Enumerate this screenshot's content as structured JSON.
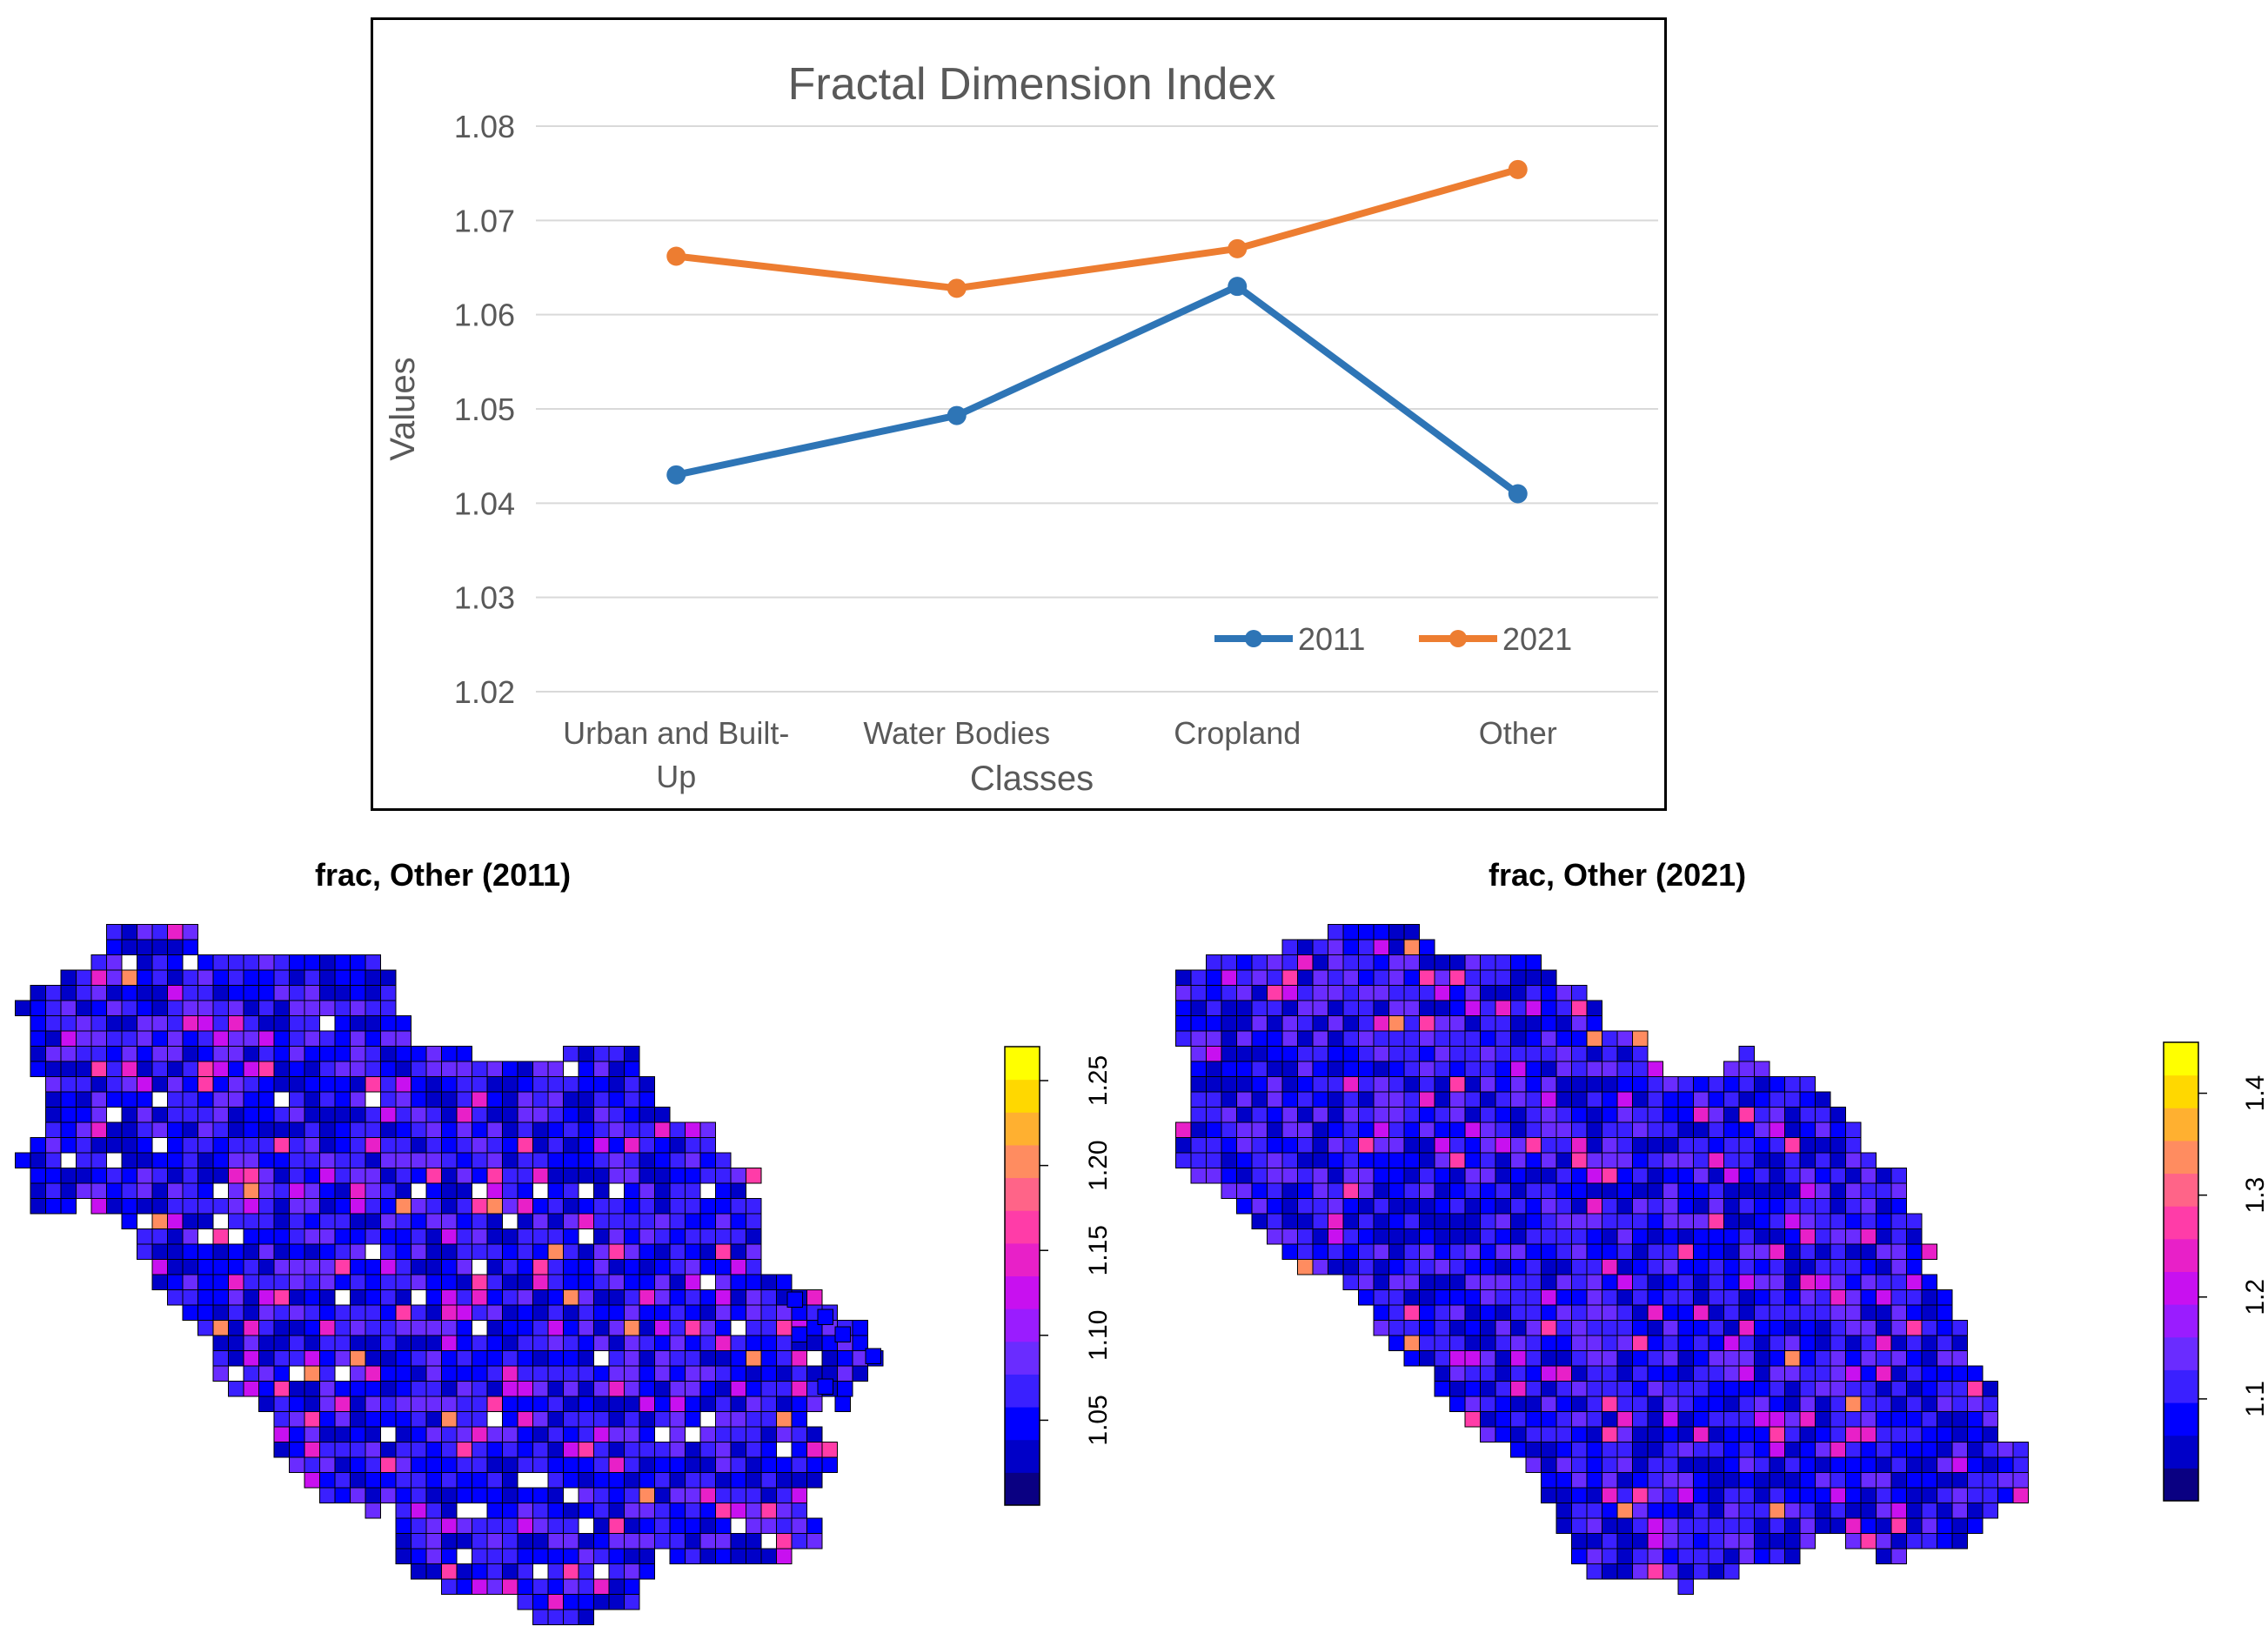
{
  "chart_data": [
    {
      "type": "line",
      "title": "Fractal Dimension Index",
      "xlabel": "Classes",
      "ylabel": "Values",
      "categories": [
        "Urban and Built-Up",
        "Water Bodies",
        "Cropland",
        "Other"
      ],
      "category_lines": [
        [
          "Urban and Built-",
          "Up"
        ],
        [
          "Water Bodies"
        ],
        [
          "Cropland"
        ],
        [
          "Other"
        ]
      ],
      "ylim": [
        1.02,
        1.08
      ],
      "yticks": [
        "1.02",
        "1.03",
        "1.04",
        "1.05",
        "1.06",
        "1.07",
        "1.08"
      ],
      "grid": true,
      "legend_position": "bottom-right",
      "series": [
        {
          "name": "2011",
          "values": [
            1.043,
            1.0493,
            1.063,
            1.041
          ],
          "color": "#2e75b6"
        },
        {
          "name": "2021",
          "values": [
            1.0662,
            1.0628,
            1.067,
            1.0754
          ],
          "color": "#ed7d31"
        }
      ]
    },
    {
      "type": "heatmap",
      "title": "frac, Other (2011)",
      "legend_ticks": [
        "1.05",
        "1.10",
        "1.15",
        "1.20",
        "1.25"
      ],
      "legend_range": [
        1.0,
        1.27
      ]
    },
    {
      "type": "heatmap",
      "title": "frac, Other (2021)",
      "legend_ticks": [
        "1.1",
        "1.2",
        "1.3",
        "1.4"
      ],
      "legend_range": [
        1.0,
        1.45
      ]
    }
  ],
  "colors": {
    "series_2011": "#2e75b6",
    "series_2021": "#ed7d31",
    "gridline": "#d9d9d9",
    "axis_text": "#595959",
    "frame": "#000000",
    "cell_base": "#1a0ec8",
    "cell_grid": "#000000"
  },
  "colorscale": [
    "#0a0082",
    "#0000c8",
    "#0000ff",
    "#3a20ff",
    "#6a2cff",
    "#9a1cff",
    "#c810f0",
    "#e820c8",
    "#ff3ca8",
    "#ff6488",
    "#ff8c60",
    "#ffb030",
    "#ffd800",
    "#ffff00"
  ]
}
